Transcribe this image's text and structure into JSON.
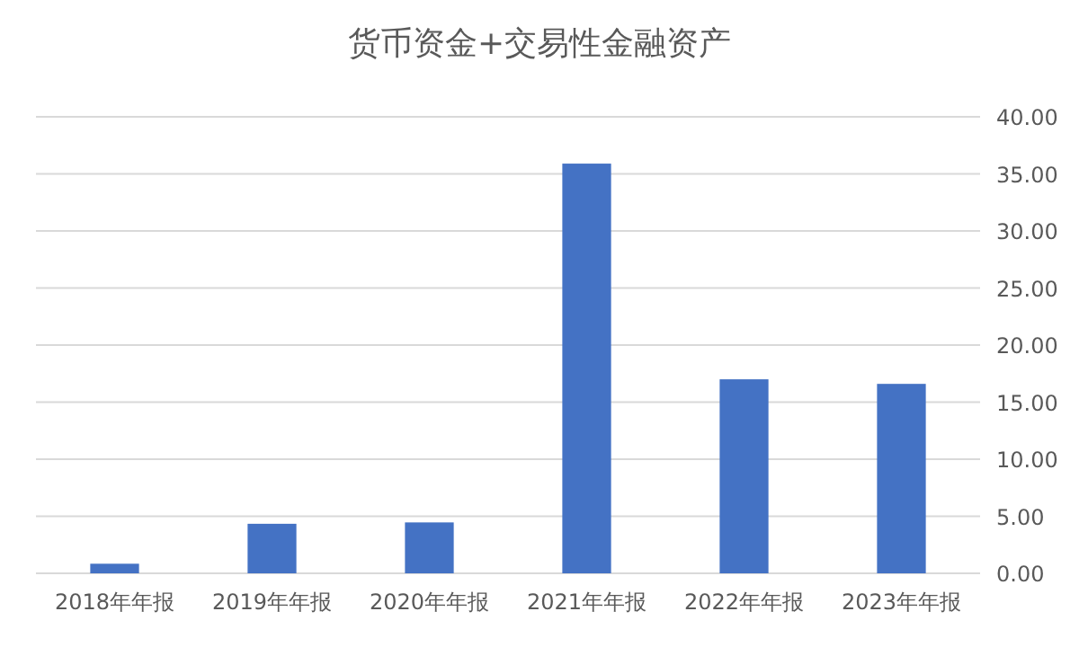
{
  "chart_data": {
    "type": "bar",
    "title": "货币资金+交易性金融资产",
    "categories": [
      "2018年年报",
      "2019年年报",
      "2020年年报",
      "2021年年报",
      "2022年年报",
      "2023年年报"
    ],
    "values": [
      0.84,
      4.34,
      4.46,
      35.9,
      17.0,
      16.6
    ],
    "color": "#4472c4",
    "ylim": [
      0,
      40
    ],
    "yticks": [
      {
        "value": 0,
        "label": "0.00"
      },
      {
        "value": 5,
        "label": "5.00"
      },
      {
        "value": 10,
        "label": "10.00"
      },
      {
        "value": 15,
        "label": "15.00"
      },
      {
        "value": 20,
        "label": "20.00"
      },
      {
        "value": 25,
        "label": "25.00"
      },
      {
        "value": 30,
        "label": "30.00"
      },
      {
        "value": 35,
        "label": "35.00"
      },
      {
        "value": 40,
        "label": "40.00"
      }
    ],
    "grid": "y"
  }
}
